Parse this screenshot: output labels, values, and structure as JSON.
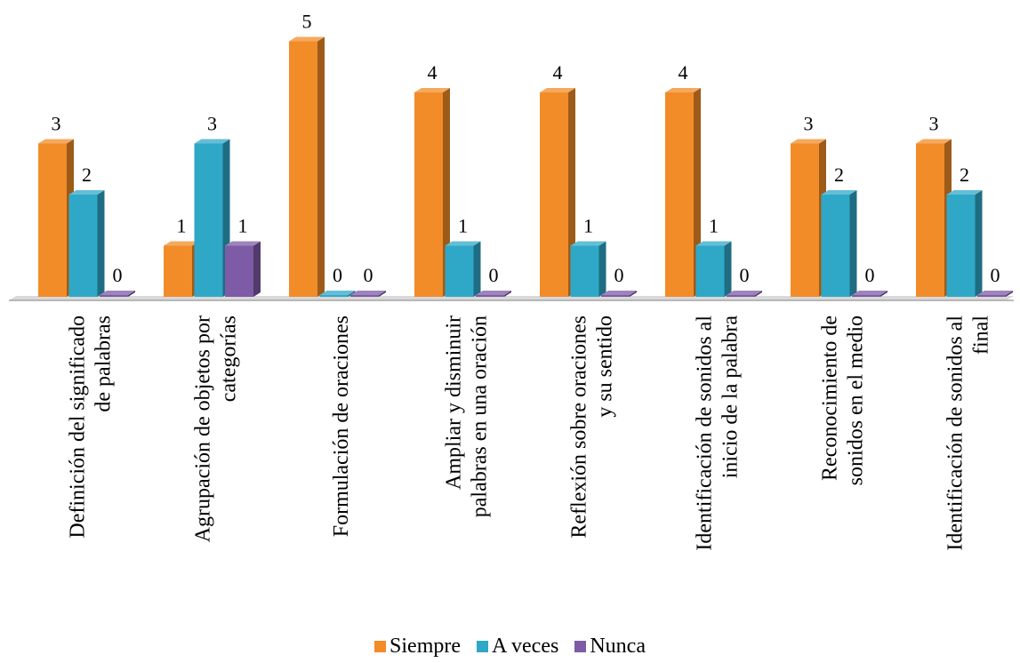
{
  "chart_data": {
    "type": "bar",
    "style": "3d-clustered-column",
    "categories": [
      "Definición del significado de palabras",
      "Agrupación de objetos por categorías",
      "Formulación de oraciones",
      "Ampliar y disminuir palabras en una oración",
      "Reflexión sobre oraciones y su sentido",
      "Identificación de sonidos al inicio de la palabra",
      "Reconocimiento de sonidos en el medio",
      "Identificación de sonidos al final"
    ],
    "category_label_lines": [
      [
        "Definición del significado",
        "de palabras"
      ],
      [
        "Agrupación de objetos por",
        "categorías"
      ],
      [
        "Formulación de oraciones"
      ],
      [
        "Ampliar y disminuir",
        "palabras en una oración"
      ],
      [
        "Reflexión sobre oraciones",
        "y su sentido"
      ],
      [
        "Identificación de sonidos al",
        "inicio de la palabra"
      ],
      [
        "Reconocimiento de",
        "sonidos en el medio"
      ],
      [
        "Identificación de sonidos al",
        "final"
      ]
    ],
    "series": [
      {
        "name": "Siempre",
        "color": "#F28C28",
        "values": [
          3,
          1,
          5,
          4,
          4,
          4,
          3,
          3
        ]
      },
      {
        "name": "A veces",
        "color": "#2FA8C8",
        "values": [
          2,
          3,
          0,
          1,
          1,
          1,
          2,
          2
        ]
      },
      {
        "name": "Nunca",
        "color": "#7E5BA6",
        "values": [
          0,
          1,
          0,
          0,
          0,
          0,
          0,
          0
        ]
      }
    ],
    "ylim": [
      0,
      5
    ],
    "grid": false,
    "data_labels": true,
    "legend_position": "bottom"
  }
}
